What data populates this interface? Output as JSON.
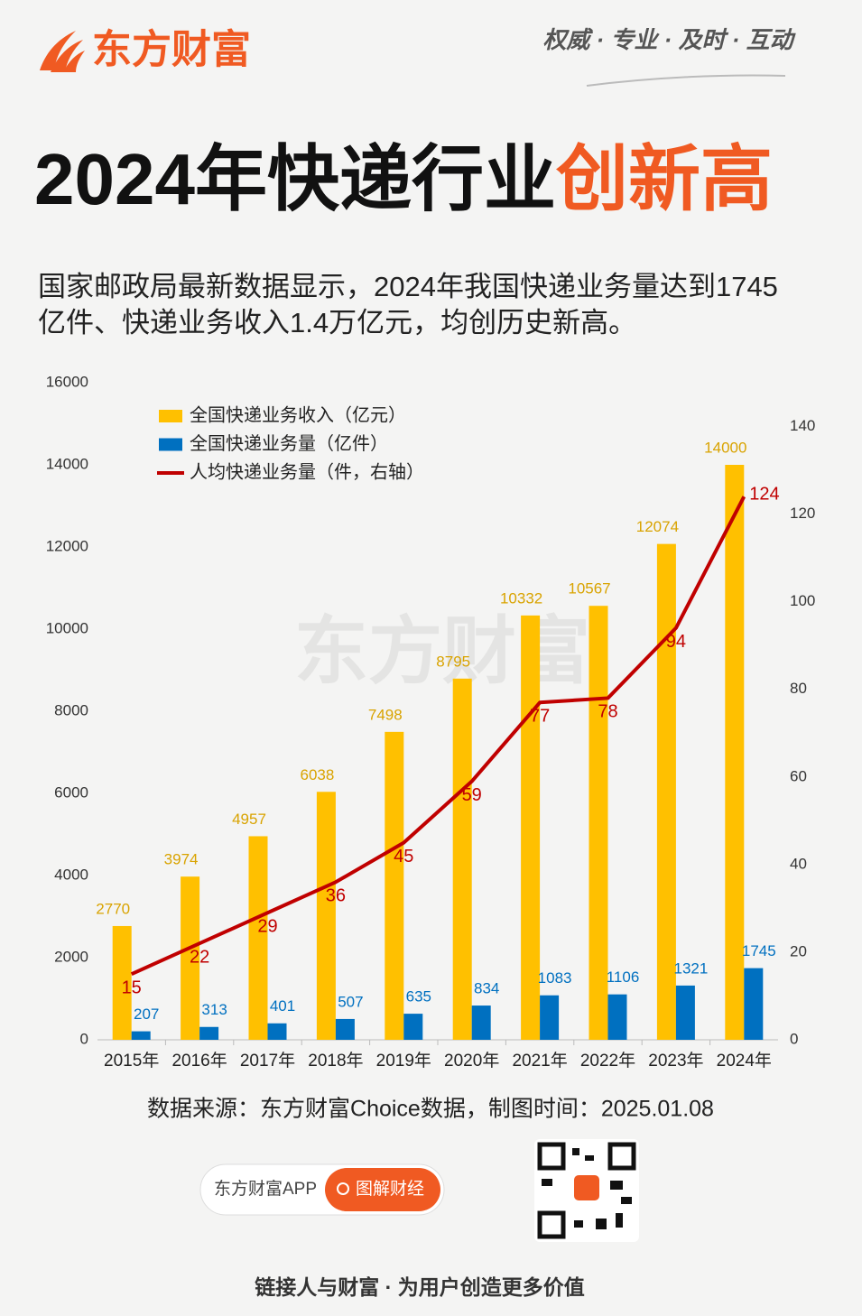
{
  "header": {
    "logo": "东方财富",
    "slogan": "权威 · 专业 · 及时 · 互动"
  },
  "title": {
    "main": "2024年快递行业",
    "highlight": "创新高"
  },
  "intro": [
    "国家邮政局最新数据显示，2024年我国快递业务量达到1745",
    "亿件、快递业务收入1.4万亿元，均创历史新高。"
  ],
  "chart_data": {
    "type": "bar",
    "categories": [
      "2015年",
      "2016年",
      "2017年",
      "2018年",
      "2019年",
      "2020年",
      "2021年",
      "2022年",
      "2023年",
      "2024年"
    ],
    "series": [
      {
        "name": "全国快递业务收入（亿元）",
        "color": "#ffc000",
        "type": "bar",
        "values": [
          2770,
          3974,
          4957,
          6038,
          7498,
          8795,
          10332,
          10567,
          12074,
          14000
        ]
      },
      {
        "name": "全国快递业务量（亿件）",
        "color": "#0070c0",
        "type": "bar",
        "values": [
          207,
          313,
          401,
          507,
          635,
          834,
          1083,
          1106,
          1321,
          1745
        ]
      },
      {
        "name": "人均快递业务量（件，右轴）",
        "color": "#c00000",
        "type": "line",
        "axis": "y2",
        "values": [
          15,
          22,
          29,
          36,
          45,
          59,
          77,
          78,
          94,
          124
        ]
      }
    ],
    "ylim": [
      0,
      16000
    ],
    "yticks": [
      0,
      2000,
      4000,
      6000,
      8000,
      10000,
      12000,
      14000,
      16000
    ],
    "y2lim": [
      0,
      150
    ],
    "y2ticks": [
      0,
      20,
      40,
      60,
      80,
      100,
      120,
      140
    ],
    "watermark": "东方财富",
    "source": "数据来源：东方财富Choice数据，制图时间：2025.01.08"
  },
  "footer": {
    "app": "东方财富APP",
    "button": "图解财经",
    "slogan": "链接人与财富 · 为用户创造更多价值"
  }
}
